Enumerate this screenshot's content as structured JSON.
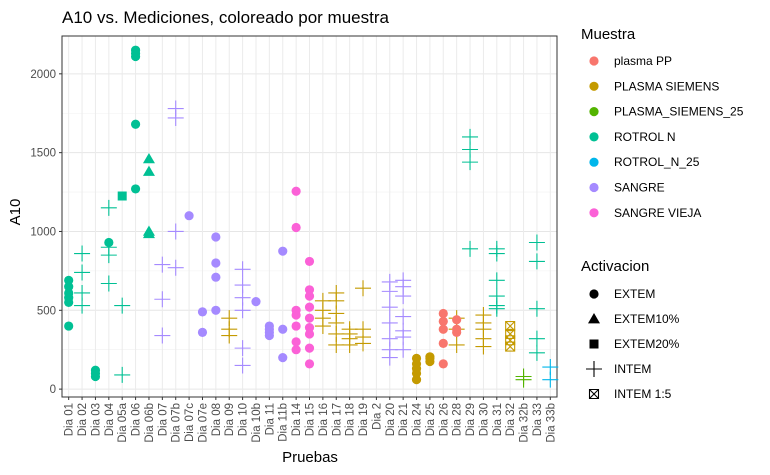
{
  "chart_data": {
    "type": "scatter",
    "title": "A10 vs. Mediciones, coloreado por muestra",
    "xlabel": "Pruebas",
    "ylabel": "A10",
    "ylim": [
      -50,
      2240
    ],
    "yticks": [
      0,
      500,
      1000,
      1500,
      2000
    ],
    "grid": true,
    "categories": [
      "Dia 01",
      "Dia 02",
      "Dia 03",
      "Dia 04",
      "Dia 05a",
      "Dia 06",
      "Dia 06b",
      "Dia 07",
      "Dia 07b",
      "Dia 07c",
      "Dia 07e",
      "Dia 08",
      "Dia 09",
      "Dia 10",
      "Dia 10b",
      "Dia 11",
      "Dia 11b",
      "Dia 14",
      "Dia 15",
      "Dia 16",
      "Dia 17",
      "Dia 18",
      "Dia 19",
      "Dia 2",
      "Dia 20",
      "Dia 21",
      "Dia 24",
      "Dia 25",
      "Dia 26",
      "Dia 28",
      "Dia 29",
      "Dia 30",
      "Dia 31",
      "Dia 32",
      "Dia 32b",
      "Dia 33",
      "Dia 33b"
    ],
    "legend_color": {
      "title": "Muestra",
      "placement": "right",
      "entries": [
        {
          "name": "plasma PP",
          "color": "#F8766D"
        },
        {
          "name": "PLASMA SIEMENS",
          "color": "#C49A00"
        },
        {
          "name": "PLASMA_SIEMENS_25",
          "color": "#53B400"
        },
        {
          "name": "ROTROL N",
          "color": "#00C094"
        },
        {
          "name": "ROTROL_N_25",
          "color": "#00B6EB"
        },
        {
          "name": "SANGRE",
          "color": "#A58AFF"
        },
        {
          "name": "SANGRE VIEJA",
          "color": "#FB61D7"
        }
      ]
    },
    "legend_shape": {
      "title": "Activacion",
      "placement": "right",
      "entries": [
        {
          "name": "EXTEM",
          "shape": "circle"
        },
        {
          "name": "EXTEM10%",
          "shape": "triangle"
        },
        {
          "name": "EXTEM20%",
          "shape": "square"
        },
        {
          "name": "INTEM",
          "shape": "plus"
        },
        {
          "name": "INTEM 1:5",
          "shape": "boxcross"
        }
      ]
    },
    "series": [
      {
        "name": "ROTROL N",
        "color": "#00C094",
        "points": [
          {
            "x": "Dia 01",
            "y": 400,
            "shape": "circle"
          },
          {
            "x": "Dia 01",
            "y": 550,
            "shape": "circle"
          },
          {
            "x": "Dia 01",
            "y": 580,
            "shape": "circle"
          },
          {
            "x": "Dia 01",
            "y": 610,
            "shape": "circle"
          },
          {
            "x": "Dia 01",
            "y": 650,
            "shape": "circle"
          },
          {
            "x": "Dia 01",
            "y": 690,
            "shape": "circle"
          },
          {
            "x": "Dia 02",
            "y": 530,
            "shape": "plus"
          },
          {
            "x": "Dia 02",
            "y": 610,
            "shape": "plus"
          },
          {
            "x": "Dia 02",
            "y": 740,
            "shape": "plus"
          },
          {
            "x": "Dia 02",
            "y": 860,
            "shape": "plus"
          },
          {
            "x": "Dia 03",
            "y": 80,
            "shape": "circle"
          },
          {
            "x": "Dia 03",
            "y": 100,
            "shape": "circle"
          },
          {
            "x": "Dia 03",
            "y": 120,
            "shape": "circle"
          },
          {
            "x": "Dia 04",
            "y": 930,
            "shape": "circle"
          },
          {
            "x": "Dia 04",
            "y": 670,
            "shape": "plus"
          },
          {
            "x": "Dia 04",
            "y": 850,
            "shape": "plus"
          },
          {
            "x": "Dia 04",
            "y": 900,
            "shape": "plus"
          },
          {
            "x": "Dia 04",
            "y": 1150,
            "shape": "plus"
          },
          {
            "x": "Dia 05a",
            "y": 1225,
            "shape": "square"
          },
          {
            "x": "Dia 05a",
            "y": 530,
            "shape": "plus"
          },
          {
            "x": "Dia 05a",
            "y": 90,
            "shape": "plus"
          },
          {
            "x": "Dia 06",
            "y": 1270,
            "shape": "circle"
          },
          {
            "x": "Dia 06",
            "y": 1680,
            "shape": "circle"
          },
          {
            "x": "Dia 06",
            "y": 2110,
            "shape": "circle"
          },
          {
            "x": "Dia 06",
            "y": 2130,
            "shape": "circle"
          },
          {
            "x": "Dia 06",
            "y": 2150,
            "shape": "circle"
          },
          {
            "x": "Dia 06b",
            "y": 985,
            "shape": "triangle"
          },
          {
            "x": "Dia 06b",
            "y": 1000,
            "shape": "triangle"
          },
          {
            "x": "Dia 06b",
            "y": 1380,
            "shape": "triangle"
          },
          {
            "x": "Dia 06b",
            "y": 1460,
            "shape": "triangle"
          },
          {
            "x": "Dia 29",
            "y": 890,
            "shape": "plus"
          },
          {
            "x": "Dia 29",
            "y": 1440,
            "shape": "plus"
          },
          {
            "x": "Dia 29",
            "y": 1520,
            "shape": "plus"
          },
          {
            "x": "Dia 29",
            "y": 1600,
            "shape": "plus"
          },
          {
            "x": "Dia 31",
            "y": 510,
            "shape": "plus"
          },
          {
            "x": "Dia 31",
            "y": 530,
            "shape": "plus"
          },
          {
            "x": "Dia 31",
            "y": 590,
            "shape": "plus"
          },
          {
            "x": "Dia 31",
            "y": 690,
            "shape": "plus"
          },
          {
            "x": "Dia 31",
            "y": 860,
            "shape": "plus"
          },
          {
            "x": "Dia 31",
            "y": 890,
            "shape": "plus"
          },
          {
            "x": "Dia 33",
            "y": 230,
            "shape": "plus"
          },
          {
            "x": "Dia 33",
            "y": 320,
            "shape": "plus"
          },
          {
            "x": "Dia 33",
            "y": 510,
            "shape": "plus"
          },
          {
            "x": "Dia 33",
            "y": 810,
            "shape": "plus"
          },
          {
            "x": "Dia 33",
            "y": 930,
            "shape": "plus"
          }
        ]
      },
      {
        "name": "SANGRE",
        "color": "#A58AFF",
        "points": [
          {
            "x": "Dia 07",
            "y": 340,
            "shape": "plus"
          },
          {
            "x": "Dia 07",
            "y": 570,
            "shape": "plus"
          },
          {
            "x": "Dia 07",
            "y": 790,
            "shape": "plus"
          },
          {
            "x": "Dia 07b",
            "y": 770,
            "shape": "plus"
          },
          {
            "x": "Dia 07b",
            "y": 1000,
            "shape": "plus"
          },
          {
            "x": "Dia 07b",
            "y": 1720,
            "shape": "plus"
          },
          {
            "x": "Dia 07b",
            "y": 1780,
            "shape": "plus"
          },
          {
            "x": "Dia 07c",
            "y": 1100,
            "shape": "circle"
          },
          {
            "x": "Dia 07e",
            "y": 360,
            "shape": "circle"
          },
          {
            "x": "Dia 07e",
            "y": 490,
            "shape": "circle"
          },
          {
            "x": "Dia 08",
            "y": 500,
            "shape": "circle"
          },
          {
            "x": "Dia 08",
            "y": 710,
            "shape": "circle"
          },
          {
            "x": "Dia 08",
            "y": 800,
            "shape": "circle"
          },
          {
            "x": "Dia 08",
            "y": 965,
            "shape": "circle"
          },
          {
            "x": "Dia 10",
            "y": 150,
            "shape": "plus"
          },
          {
            "x": "Dia 10",
            "y": 260,
            "shape": "plus"
          },
          {
            "x": "Dia 10",
            "y": 500,
            "shape": "plus"
          },
          {
            "x": "Dia 10",
            "y": 580,
            "shape": "plus"
          },
          {
            "x": "Dia 10",
            "y": 660,
            "shape": "plus"
          },
          {
            "x": "Dia 10",
            "y": 760,
            "shape": "plus"
          },
          {
            "x": "Dia 10b",
            "y": 555,
            "shape": "circle"
          },
          {
            "x": "Dia 11",
            "y": 340,
            "shape": "circle"
          },
          {
            "x": "Dia 11",
            "y": 360,
            "shape": "circle"
          },
          {
            "x": "Dia 11",
            "y": 380,
            "shape": "circle"
          },
          {
            "x": "Dia 11",
            "y": 400,
            "shape": "circle"
          },
          {
            "x": "Dia 11b",
            "y": 200,
            "shape": "circle"
          },
          {
            "x": "Dia 11b",
            "y": 380,
            "shape": "circle"
          },
          {
            "x": "Dia 11b",
            "y": 875,
            "shape": "circle"
          },
          {
            "x": "Dia 20",
            "y": 200,
            "shape": "plus"
          },
          {
            "x": "Dia 20",
            "y": 250,
            "shape": "plus"
          },
          {
            "x": "Dia 20",
            "y": 320,
            "shape": "plus"
          },
          {
            "x": "Dia 20",
            "y": 420,
            "shape": "plus"
          },
          {
            "x": "Dia 20",
            "y": 520,
            "shape": "plus"
          },
          {
            "x": "Dia 20",
            "y": 620,
            "shape": "plus"
          },
          {
            "x": "Dia 20",
            "y": 680,
            "shape": "plus"
          },
          {
            "x": "Dia 21",
            "y": 250,
            "shape": "plus"
          },
          {
            "x": "Dia 21",
            "y": 330,
            "shape": "plus"
          },
          {
            "x": "Dia 21",
            "y": 370,
            "shape": "plus"
          },
          {
            "x": "Dia 21",
            "y": 460,
            "shape": "plus"
          },
          {
            "x": "Dia 21",
            "y": 590,
            "shape": "plus"
          },
          {
            "x": "Dia 21",
            "y": 650,
            "shape": "plus"
          },
          {
            "x": "Dia 21",
            "y": 690,
            "shape": "plus"
          }
        ]
      },
      {
        "name": "SANGRE VIEJA",
        "color": "#FB61D7",
        "points": [
          {
            "x": "Dia 14",
            "y": 250,
            "shape": "circle"
          },
          {
            "x": "Dia 14",
            "y": 300,
            "shape": "circle"
          },
          {
            "x": "Dia 14",
            "y": 400,
            "shape": "circle"
          },
          {
            "x": "Dia 14",
            "y": 470,
            "shape": "circle"
          },
          {
            "x": "Dia 14",
            "y": 500,
            "shape": "circle"
          },
          {
            "x": "Dia 14",
            "y": 1025,
            "shape": "circle"
          },
          {
            "x": "Dia 14",
            "y": 1255,
            "shape": "circle"
          },
          {
            "x": "Dia 15",
            "y": 160,
            "shape": "circle"
          },
          {
            "x": "Dia 15",
            "y": 260,
            "shape": "circle"
          },
          {
            "x": "Dia 15",
            "y": 350,
            "shape": "circle"
          },
          {
            "x": "Dia 15",
            "y": 390,
            "shape": "circle"
          },
          {
            "x": "Dia 15",
            "y": 450,
            "shape": "circle"
          },
          {
            "x": "Dia 15",
            "y": 520,
            "shape": "circle"
          },
          {
            "x": "Dia 15",
            "y": 590,
            "shape": "circle"
          },
          {
            "x": "Dia 15",
            "y": 630,
            "shape": "circle"
          },
          {
            "x": "Dia 15",
            "y": 810,
            "shape": "circle"
          }
        ]
      },
      {
        "name": "PLASMA SIEMENS",
        "color": "#C49A00",
        "points": [
          {
            "x": "Dia 09",
            "y": 340,
            "shape": "plus"
          },
          {
            "x": "Dia 09",
            "y": 380,
            "shape": "plus"
          },
          {
            "x": "Dia 09",
            "y": 450,
            "shape": "plus"
          },
          {
            "x": "Dia 16",
            "y": 400,
            "shape": "plus"
          },
          {
            "x": "Dia 16",
            "y": 450,
            "shape": "plus"
          },
          {
            "x": "Dia 16",
            "y": 500,
            "shape": "plus"
          },
          {
            "x": "Dia 16",
            "y": 560,
            "shape": "plus"
          },
          {
            "x": "Dia 17",
            "y": 280,
            "shape": "plus"
          },
          {
            "x": "Dia 17",
            "y": 350,
            "shape": "plus"
          },
          {
            "x": "Dia 17",
            "y": 420,
            "shape": "plus"
          },
          {
            "x": "Dia 17",
            "y": 480,
            "shape": "plus"
          },
          {
            "x": "Dia 17",
            "y": 560,
            "shape": "plus"
          },
          {
            "x": "Dia 17",
            "y": 610,
            "shape": "plus"
          },
          {
            "x": "Dia 18",
            "y": 280,
            "shape": "plus"
          },
          {
            "x": "Dia 18",
            "y": 320,
            "shape": "plus"
          },
          {
            "x": "Dia 18",
            "y": 350,
            "shape": "plus"
          },
          {
            "x": "Dia 18",
            "y": 380,
            "shape": "plus"
          },
          {
            "x": "Dia 19",
            "y": 290,
            "shape": "plus"
          },
          {
            "x": "Dia 19",
            "y": 330,
            "shape": "plus"
          },
          {
            "x": "Dia 19",
            "y": 380,
            "shape": "plus"
          },
          {
            "x": "Dia 19",
            "y": 640,
            "shape": "plus"
          },
          {
            "x": "Dia 24",
            "y": 60,
            "shape": "circle"
          },
          {
            "x": "Dia 24",
            "y": 100,
            "shape": "circle"
          },
          {
            "x": "Dia 24",
            "y": 130,
            "shape": "circle"
          },
          {
            "x": "Dia 24",
            "y": 160,
            "shape": "circle"
          },
          {
            "x": "Dia 24",
            "y": 195,
            "shape": "circle"
          },
          {
            "x": "Dia 25",
            "y": 175,
            "shape": "circle"
          },
          {
            "x": "Dia 25",
            "y": 195,
            "shape": "circle"
          },
          {
            "x": "Dia 25",
            "y": 205,
            "shape": "circle"
          },
          {
            "x": "Dia 28",
            "y": 280,
            "shape": "plus"
          },
          {
            "x": "Dia 28",
            "y": 380,
            "shape": "plus"
          },
          {
            "x": "Dia 28",
            "y": 450,
            "shape": "plus"
          },
          {
            "x": "Dia 30",
            "y": 270,
            "shape": "plus"
          },
          {
            "x": "Dia 30",
            "y": 320,
            "shape": "plus"
          },
          {
            "x": "Dia 30",
            "y": 380,
            "shape": "plus"
          },
          {
            "x": "Dia 30",
            "y": 420,
            "shape": "plus"
          },
          {
            "x": "Dia 30",
            "y": 470,
            "shape": "plus"
          },
          {
            "x": "Dia 32",
            "y": 270,
            "shape": "boxcross"
          },
          {
            "x": "Dia 32",
            "y": 310,
            "shape": "boxcross"
          },
          {
            "x": "Dia 32",
            "y": 350,
            "shape": "boxcross"
          },
          {
            "x": "Dia 32",
            "y": 400,
            "shape": "boxcross"
          }
        ]
      },
      {
        "name": "plasma PP",
        "color": "#F8766D",
        "points": [
          {
            "x": "Dia 26",
            "y": 160,
            "shape": "circle"
          },
          {
            "x": "Dia 26",
            "y": 290,
            "shape": "circle"
          },
          {
            "x": "Dia 26",
            "y": 380,
            "shape": "circle"
          },
          {
            "x": "Dia 26",
            "y": 430,
            "shape": "circle"
          },
          {
            "x": "Dia 26",
            "y": 480,
            "shape": "circle"
          },
          {
            "x": "Dia 28",
            "y": 360,
            "shape": "circle"
          },
          {
            "x": "Dia 28",
            "y": 380,
            "shape": "circle"
          },
          {
            "x": "Dia 28",
            "y": 440,
            "shape": "circle"
          }
        ]
      },
      {
        "name": "PLASMA_SIEMENS_25",
        "color": "#53B400",
        "points": [
          {
            "x": "Dia 32b",
            "y": 60,
            "shape": "plus"
          },
          {
            "x": "Dia 32b",
            "y": 80,
            "shape": "plus"
          }
        ]
      },
      {
        "name": "ROTROL_N_25",
        "color": "#00B6EB",
        "points": [
          {
            "x": "Dia 33b",
            "y": 60,
            "shape": "plus"
          },
          {
            "x": "Dia 33b",
            "y": 140,
            "shape": "plus"
          }
        ]
      }
    ]
  }
}
